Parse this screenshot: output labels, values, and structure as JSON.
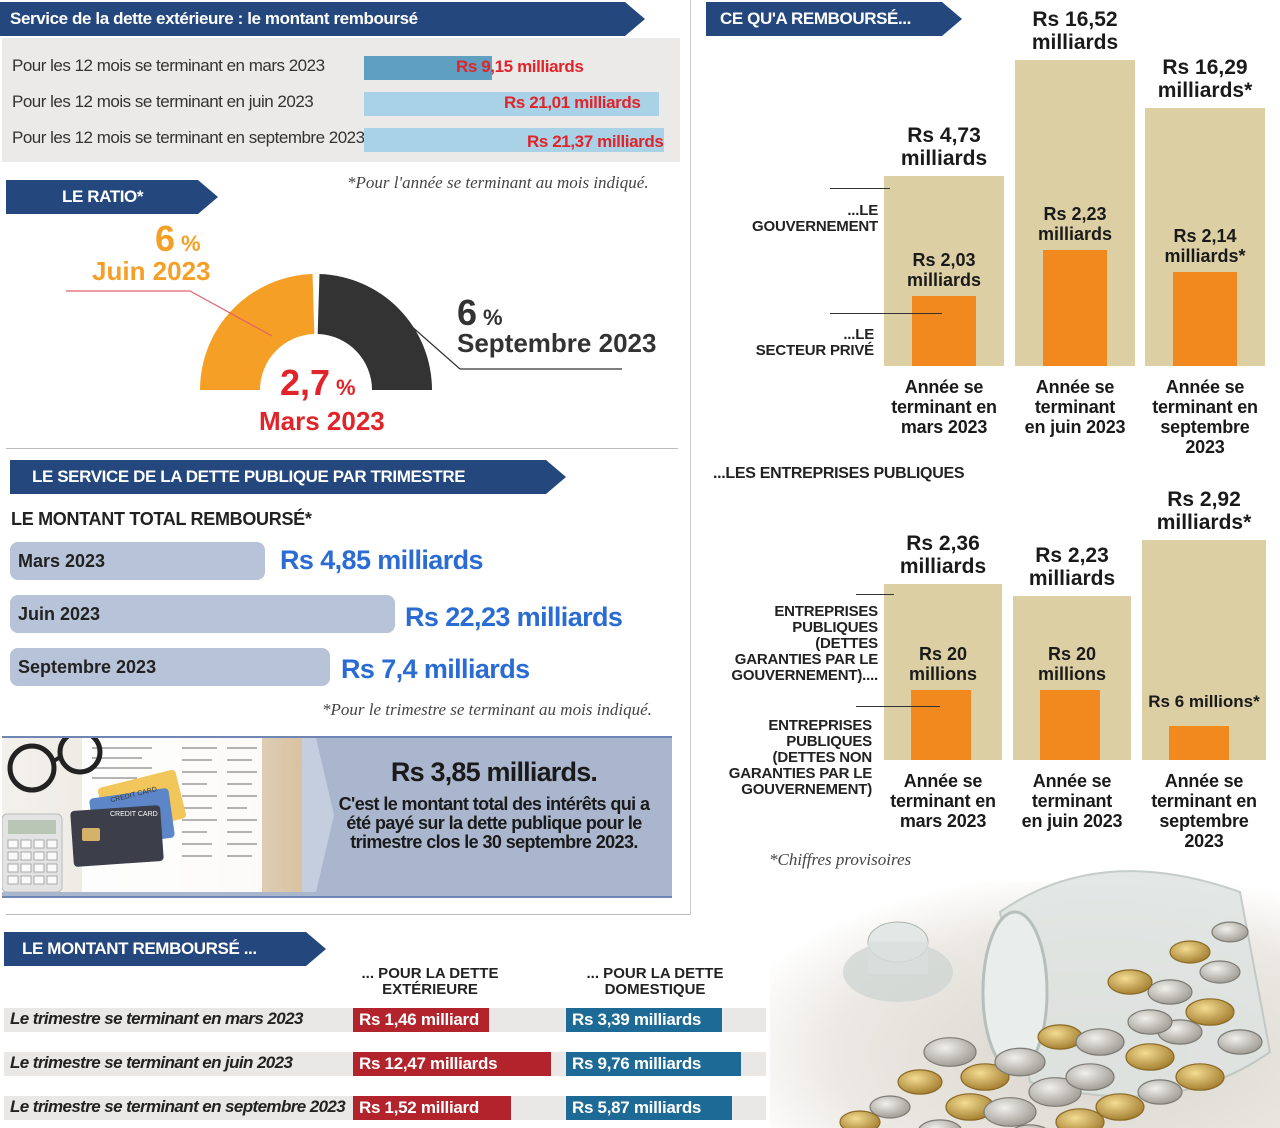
{
  "chart_data": [
    {
      "type": "bar",
      "title": "Service de la dette extérieure : le montant remboursé",
      "categories": [
        "Pour les 12 mois se terminant en mars 2023",
        "Pour les 12 mois se terminant en juin 2023",
        "Pour les 12 mois se terminant en septembre 2023"
      ],
      "values": [
        9.15,
        21.01,
        21.37
      ],
      "value_labels": [
        "Rs 9,15 milliards",
        "Rs 21,01 milliards",
        "Rs 21,37 milliards"
      ],
      "note": "*Pour l'année se terminant au mois indiqué."
    },
    {
      "type": "pie",
      "title": "LE RATIO*",
      "slices": [
        {
          "label": "Mars 2023",
          "value": 2.7,
          "text": "2,7",
          "unit": "%"
        },
        {
          "label": "Juin 2023",
          "value": 6,
          "text": "6",
          "unit": "%"
        },
        {
          "label": "Septembre 2023",
          "value": 6,
          "text": "6",
          "unit": "%"
        }
      ]
    },
    {
      "type": "bar",
      "title": "LE SERVICE DE LA DETTE PUBLIQUE PAR TRIMESTRE",
      "subtitle": "LE MONTANT TOTAL REMBOURSÉ*",
      "categories": [
        "Mars 2023",
        "Juin 2023",
        "Septembre 2023"
      ],
      "values": [
        4.85,
        22.23,
        7.4
      ],
      "value_labels": [
        "Rs 4,85 milliards",
        "Rs 22,23 milliards",
        "Rs 7,4 milliards"
      ],
      "note": "*Pour le trimestre se terminant au mois indiqué."
    },
    {
      "type": "bar",
      "title": "CE QU'A REMBOURSÉ...",
      "subtitle": "...LE GOUVERNEMENT / ...LE SECTEUR PRIVÉ",
      "categories": [
        "Année se terminant en mars 2023",
        "Année se terminant en juin 2023",
        "Année se terminant en septembre 2023"
      ],
      "series": [
        {
          "name": "...LE GOUVERNEMENT",
          "values": [
            4.73,
            16.52,
            16.29
          ],
          "labels": [
            "Rs 4,73 milliards",
            "Rs 16,52 milliards",
            "Rs 16,29 milliards*"
          ]
        },
        {
          "name": "...LE SECTEUR PRIVÉ",
          "values": [
            2.03,
            2.23,
            2.14
          ],
          "labels": [
            "Rs 2,03 milliards",
            "Rs 2,23 milliards",
            "Rs 2,14 milliards*"
          ]
        }
      ]
    },
    {
      "type": "bar",
      "title": "...LES ENTREPRISES PUBLIQUES",
      "categories": [
        "Année se terminant en mars 2023",
        "Année se terminant en juin 2023",
        "Année se terminant en septembre 2023"
      ],
      "series": [
        {
          "name": "ENTREPRISES PUBLIQUES (DETTES GARANTIES PAR LE GOUVERNEMENT)....",
          "values": [
            2.36,
            2.23,
            2.92
          ],
          "labels": [
            "Rs 2,36 milliards",
            "Rs 2,23 milliards",
            "Rs 2,92 milliards*"
          ]
        },
        {
          "name": "ENTREPRISES PUBLIQUES (DETTES NON GARANTIES PAR LE GOUVERNEMENT)",
          "values": [
            0.02,
            0.02,
            0.006
          ],
          "labels": [
            "Rs 20 millions",
            "Rs 20 millions",
            "Rs 6 millions*"
          ]
        }
      ],
      "note": "*Chiffres provisoires"
    },
    {
      "type": "table",
      "title": "LE MONTANT REMBOURSÉ ...",
      "columns": [
        "... POUR LA DETTE EXTÉRIEURE",
        "... POUR LA DETTE DOMESTIQUE"
      ],
      "rows": [
        {
          "label": "Le trimestre se terminant en mars 2023",
          "exterieure": 1.46,
          "domestique": 3.39,
          "ext_text": "Rs 1,46 milliard",
          "dom_text": "Rs 3,39 milliards"
        },
        {
          "label": "Le trimestre se terminant en juin 2023",
          "exterieure": 12.47,
          "domestique": 9.76,
          "ext_text": "Rs 12,47 milliards",
          "dom_text": "Rs 9,76 milliards"
        },
        {
          "label": "Le trimestre se terminant en septembre 2023",
          "exterieure": 1.52,
          "domestique": 5.87,
          "ext_text": "Rs 1,52 milliard",
          "dom_text": "Rs 5,87 milliards"
        }
      ]
    }
  ],
  "interest": {
    "headline": "Rs 3,85 milliards.",
    "text": "C'est le montant total des intérêts qui a été payé sur la dette publique pour le trimestre clos le 30 septembre 2023."
  },
  "labels": {
    "ratio_pct": "%",
    "gov_label_top": "...LE",
    "gov_label_bottom": "GOUVERNEMENT",
    "priv_label_top": "...LE",
    "priv_label_bottom": "SECTEUR PRIVÉ",
    "ent_garanties": [
      "ENTREPRISES",
      "PUBLIQUES",
      "(DETTES",
      "GARANTIES PAR LE",
      "GOUVERNEMENT)...."
    ],
    "ent_non_garanties": [
      "ENTREPRISES",
      "PUBLIQUES",
      "(DETTES NON",
      "GARANTIES PAR LE",
      "GOUVERNEMENT)"
    ],
    "years": [
      [
        "Année se",
        "terminant en",
        "mars 2023"
      ],
      [
        "Année se",
        "terminant",
        "en juin 2023"
      ],
      [
        "Année se",
        "terminant en",
        "septembre",
        "2023"
      ]
    ],
    "years2": [
      [
        "Année se",
        "terminant en",
        "mars 2023"
      ],
      [
        "Année se",
        "terminant",
        "en juin 2023"
      ],
      [
        "Année se",
        "terminant en",
        "septembre",
        "2023"
      ]
    ]
  },
  "image_texts": {
    "card1": "CREDIT CARD",
    "card2": "CREDIT CARD"
  },
  "colors": {
    "navy": "#24487e",
    "red": "#e0242a",
    "blue": "#2a6cd3",
    "orange": "#f2891f",
    "beige": "#dccfa4",
    "dark_red": "#b3232b",
    "teal": "#1d6a96"
  }
}
